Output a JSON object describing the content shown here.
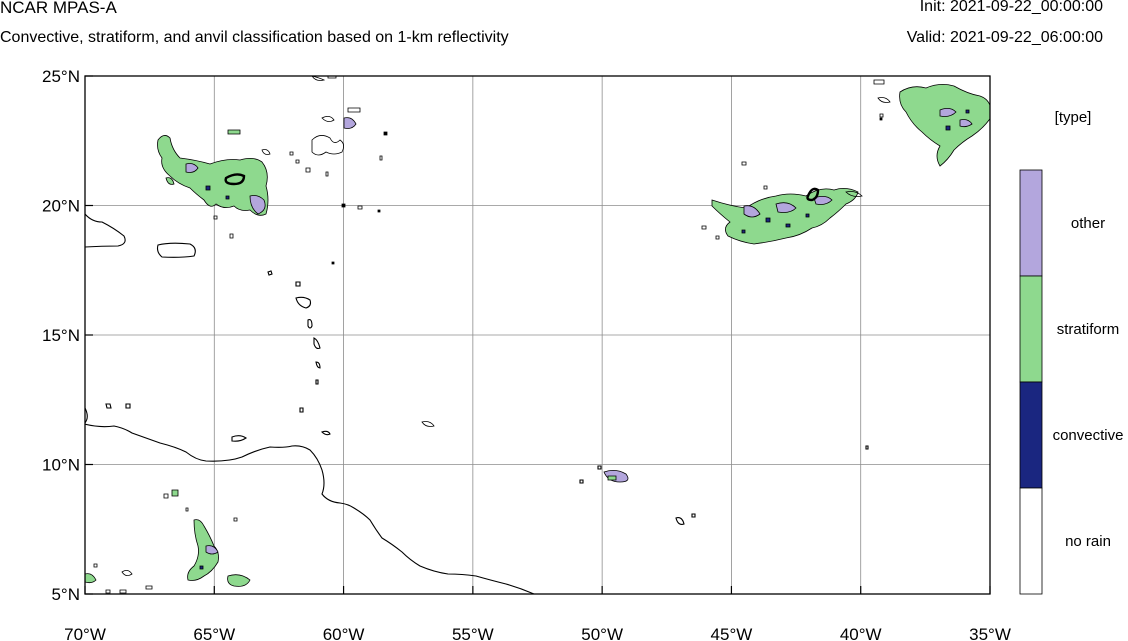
{
  "header": {
    "title": "NCAR MPAS-A",
    "subtitle": "Convective, stratiform, and anvil classification based on 1-km reflectivity",
    "init": "Init: 2021-09-22_00:00:00",
    "valid": "Valid: 2021-09-22_06:00:00"
  },
  "map": {
    "lon_range": [
      -70,
      -35
    ],
    "lat_range": [
      5,
      25
    ],
    "x_ticks": [
      {
        "lon": -70,
        "label": "70°W"
      },
      {
        "lon": -65,
        "label": "65°W"
      },
      {
        "lon": -60,
        "label": "60°W"
      },
      {
        "lon": -55,
        "label": "55°W"
      },
      {
        "lon": -50,
        "label": "50°W"
      },
      {
        "lon": -45,
        "label": "45°W"
      },
      {
        "lon": -40,
        "label": "40°W"
      },
      {
        "lon": -35,
        "label": "35°W"
      }
    ],
    "y_ticks": [
      {
        "lat": 25,
        "label": "25°N"
      },
      {
        "lat": 20,
        "label": "20°N"
      },
      {
        "lat": 15,
        "label": "15°N"
      },
      {
        "lat": 10,
        "label": "10°N"
      },
      {
        "lat": 5,
        "label": "5°N"
      }
    ],
    "gridlines": true
  },
  "legend": {
    "title": "[type]",
    "categories": [
      {
        "label": "other",
        "color": "#b3a6dd"
      },
      {
        "label": "stratiform",
        "color": "#8ed98e"
      },
      {
        "label": "convective",
        "color": "#1a2680"
      },
      {
        "label": "no rain",
        "color": "#ffffff"
      }
    ]
  },
  "colors": {
    "coastline": "#000000",
    "grid": "#8c8c8c"
  }
}
